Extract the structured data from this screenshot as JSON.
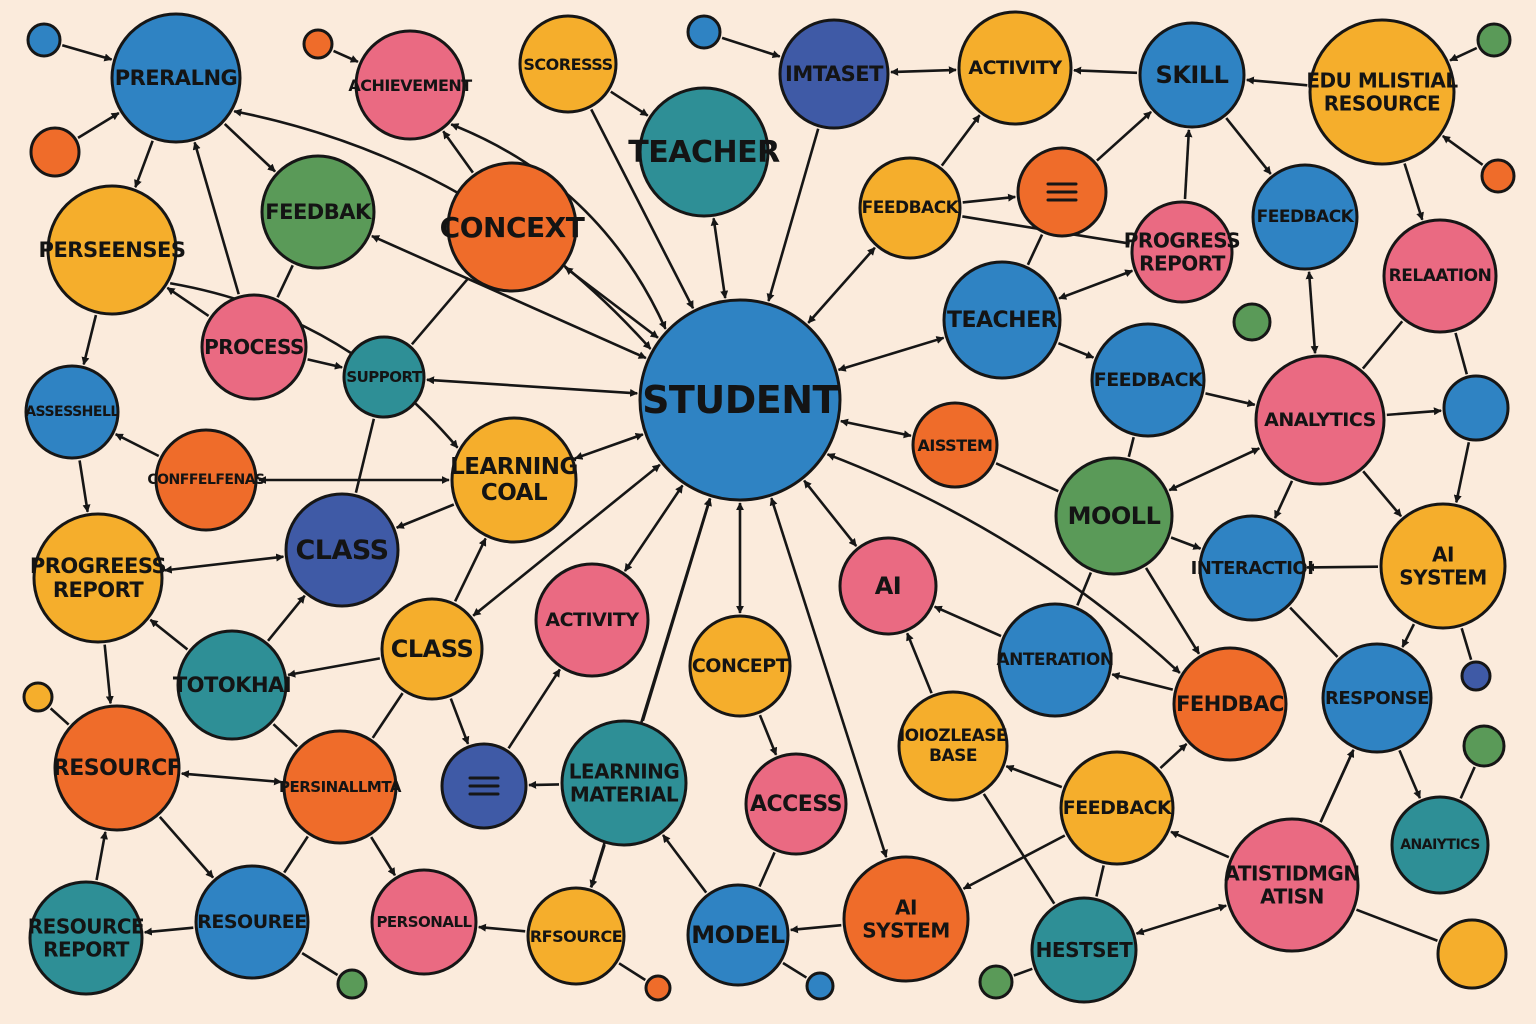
{
  "colors": {
    "background": "#fbebdc",
    "blue": "#2f83c3",
    "teal": "#2e8f96",
    "green": "#5a9a58",
    "orange": "#ef6c2a",
    "yellow": "#f5ae2c",
    "pink": "#ea6a82",
    "indigo": "#3f5aa6",
    "outline": "#161616"
  },
  "nodes": [
    {
      "id": "student",
      "label": "STUDENT",
      "color": "blue"
    },
    {
      "id": "prerang",
      "label": "PRERALNG",
      "color": "blue"
    },
    {
      "id": "achievement",
      "label": "ACHIEVEMENT",
      "color": "pink"
    },
    {
      "id": "scoresss",
      "label": "SCORESSS",
      "color": "yellow"
    },
    {
      "id": "teacher_top",
      "label": "TEACHER",
      "color": "teal"
    },
    {
      "id": "imtaset",
      "label": "IMTASET",
      "color": "indigo"
    },
    {
      "id": "activity_top",
      "label": "ACTIVITY",
      "color": "yellow"
    },
    {
      "id": "skill",
      "label": "SKILL",
      "color": "blue"
    },
    {
      "id": "edu_resource",
      "label": "EDU MLISTIAL RESOURCE",
      "color": "yellow"
    },
    {
      "id": "feedbak",
      "label": "FEEDBAK",
      "color": "green"
    },
    {
      "id": "concext",
      "label": "CONCEXT",
      "color": "orange"
    },
    {
      "id": "perseenses",
      "label": "PERSEENSES",
      "color": "yellow"
    },
    {
      "id": "feedback_y1",
      "label": "FEEDBACK",
      "color": "yellow"
    },
    {
      "id": "menu_orange",
      "label": "",
      "color": "orange",
      "icon": "menu-icon"
    },
    {
      "id": "progress_report_pink",
      "label": "PROGRESS REPORT",
      "color": "pink"
    },
    {
      "id": "feedback_b1",
      "label": "FEEDBACK",
      "color": "blue"
    },
    {
      "id": "relation",
      "label": "RELAATION",
      "color": "pink"
    },
    {
      "id": "process",
      "label": "PROCESS",
      "color": "pink"
    },
    {
      "id": "support",
      "label": "SUPPORT",
      "color": "teal"
    },
    {
      "id": "teacher_mid",
      "label": "TEACHER",
      "color": "blue"
    },
    {
      "id": "assesshell",
      "label": "ASSESSHELL",
      "color": "blue"
    },
    {
      "id": "confelfenas",
      "label": "CONFFELFENAS",
      "color": "orange"
    },
    {
      "id": "learning_goal",
      "label": "LEARNING COAL",
      "color": "yellow"
    },
    {
      "id": "aisstem",
      "label": "AISSTEM",
      "color": "orange"
    },
    {
      "id": "feedback_b2",
      "label": "FEEDBACK",
      "color": "blue"
    },
    {
      "id": "analytics_pink",
      "label": "ANALYTICS",
      "color": "pink"
    },
    {
      "id": "blue_right",
      "label": "",
      "color": "blue"
    },
    {
      "id": "progress_report_y",
      "label": "PROGREESS REPORT",
      "color": "yellow"
    },
    {
      "id": "class_indigo",
      "label": "CLASS",
      "color": "indigo"
    },
    {
      "id": "mooll",
      "label": "MOOLL",
      "color": "green"
    },
    {
      "id": "interaction",
      "label": "INTERACTIOI",
      "color": "blue"
    },
    {
      "id": "ai_system_y",
      "label": "AI SYSTEM",
      "color": "yellow"
    },
    {
      "id": "totokhai",
      "label": "TOTOKHAI",
      "color": "teal"
    },
    {
      "id": "class_y",
      "label": "CLASS",
      "color": "yellow"
    },
    {
      "id": "activity_pink",
      "label": "ACTIVITY",
      "color": "pink"
    },
    {
      "id": "concept",
      "label": "CONCEPT",
      "color": "yellow"
    },
    {
      "id": "ai_pink",
      "label": "AI",
      "color": "pink"
    },
    {
      "id": "anteration",
      "label": "ANTERATION",
      "color": "blue"
    },
    {
      "id": "fehdbac",
      "label": "FEHDBAC",
      "color": "orange"
    },
    {
      "id": "response",
      "label": "RESPONSE",
      "color": "blue"
    },
    {
      "id": "resourcf",
      "label": "RESOURCF",
      "color": "orange"
    },
    {
      "id": "persinallmta",
      "label": "PERSINALLMTA",
      "color": "orange"
    },
    {
      "id": "menu_indigo",
      "label": "",
      "color": "indigo",
      "icon": "menu-icon"
    },
    {
      "id": "learning_material",
      "label": "LEARNING MATERIAL",
      "color": "teal"
    },
    {
      "id": "access",
      "label": "ACCESS",
      "color": "pink"
    },
    {
      "id": "knowledge_base",
      "label": "IOIOZLEASE BASE",
      "color": "yellow"
    },
    {
      "id": "feedback_y2",
      "label": "FEEDBACK",
      "color": "yellow"
    },
    {
      "id": "analytics_teal",
      "label": "ANAIYTICS",
      "color": "teal"
    },
    {
      "id": "resource_report",
      "label": "RESOURCE REPORT",
      "color": "teal"
    },
    {
      "id": "resouree",
      "label": "RESOUREE",
      "color": "blue"
    },
    {
      "id": "personall",
      "label": "PERSONALL",
      "color": "pink"
    },
    {
      "id": "rfsource",
      "label": "RFSOURCE",
      "color": "yellow"
    },
    {
      "id": "model",
      "label": "MODEL",
      "color": "blue"
    },
    {
      "id": "ai_system_o",
      "label": "AI SYSTEM",
      "color": "orange"
    },
    {
      "id": "hestset",
      "label": "HESTSET",
      "color": "teal"
    },
    {
      "id": "atistidmgn",
      "label": "ATISTIDMGN ATISN",
      "color": "pink"
    },
    {
      "id": "yellow_br",
      "label": "",
      "color": "yellow"
    },
    {
      "id": "s1",
      "label": "",
      "color": "blue"
    },
    {
      "id": "s2",
      "label": "",
      "color": "orange"
    },
    {
      "id": "s3",
      "label": "",
      "color": "orange"
    },
    {
      "id": "s4",
      "label": "",
      "color": "blue"
    },
    {
      "id": "s5",
      "label": "",
      "color": "green"
    },
    {
      "id": "s6",
      "label": "",
      "color": "orange"
    },
    {
      "id": "s7",
      "label": "",
      "color": "green"
    },
    {
      "id": "s8",
      "label": "",
      "color": "indigo"
    },
    {
      "id": "s9",
      "label": "",
      "color": "green"
    },
    {
      "id": "s10",
      "label": "",
      "color": "yellow"
    },
    {
      "id": "s11",
      "label": "",
      "color": "green"
    },
    {
      "id": "s12",
      "label": "",
      "color": "orange"
    },
    {
      "id": "s13",
      "label": "",
      "color": "blue"
    },
    {
      "id": "s14",
      "label": "",
      "color": "green"
    }
  ],
  "edges": [
    {
      "from": "prerang",
      "to": "student",
      "dir": "both"
    },
    {
      "from": "achievement",
      "to": "student",
      "dir": "both"
    },
    {
      "from": "scoresss",
      "to": "student",
      "dir": "to"
    },
    {
      "from": "teacher_top",
      "to": "student",
      "dir": "both"
    },
    {
      "from": "imtaset",
      "to": "student",
      "dir": "to"
    },
    {
      "from": "feedback_y1",
      "to": "student",
      "dir": "both"
    },
    {
      "from": "teacher_mid",
      "to": "student",
      "dir": "both"
    },
    {
      "from": "aisstem",
      "to": "student",
      "dir": "both"
    },
    {
      "from": "concext",
      "to": "student",
      "dir": "both"
    },
    {
      "from": "feedbak",
      "to": "student",
      "dir": "both"
    },
    {
      "from": "support",
      "to": "student",
      "dir": "both"
    },
    {
      "from": "learning_goal",
      "to": "student",
      "dir": "both"
    },
    {
      "from": "class_y",
      "to": "student",
      "dir": "both"
    },
    {
      "from": "activity_pink",
      "to": "student",
      "dir": "both"
    },
    {
      "from": "concept",
      "to": "student",
      "dir": "both"
    },
    {
      "from": "learning_material",
      "to": "student",
      "dir": "to"
    },
    {
      "from": "rfsource",
      "to": "student",
      "dir": "to"
    },
    {
      "from": "ai_system_o",
      "to": "student",
      "dir": "both"
    },
    {
      "from": "ai_pink",
      "to": "student",
      "dir": "both"
    },
    {
      "from": "fehdbac",
      "to": "student",
      "dir": "both"
    },
    {
      "from": "s1",
      "to": "prerang",
      "dir": "to"
    },
    {
      "from": "s2",
      "to": "prerang",
      "dir": "to"
    },
    {
      "from": "prerang",
      "to": "feedbak",
      "dir": "to"
    },
    {
      "from": "prerang",
      "to": "perseenses",
      "dir": "to"
    },
    {
      "from": "process",
      "to": "prerang",
      "dir": "to"
    },
    {
      "from": "s3",
      "to": "achievement",
      "dir": "to"
    },
    {
      "from": "scoresss",
      "to": "teacher_top",
      "dir": "to"
    },
    {
      "from": "s4",
      "to": "imtaset",
      "dir": "to"
    },
    {
      "from": "imtaset",
      "to": "activity_top",
      "dir": "both"
    },
    {
      "from": "skill",
      "to": "activity_top",
      "dir": "to"
    },
    {
      "from": "edu_resource",
      "to": "skill",
      "dir": "to"
    },
    {
      "from": "s5",
      "to": "edu_resource",
      "dir": "to"
    },
    {
      "from": "s6",
      "to": "edu_resource",
      "dir": "to"
    },
    {
      "from": "edu_resource",
      "to": "relation",
      "dir": "to"
    },
    {
      "from": "feedback_y1",
      "to": "activity_top",
      "dir": "to"
    },
    {
      "from": "feedback_y1",
      "to": "menu_orange",
      "dir": "to"
    },
    {
      "from": "menu_orange",
      "to": "skill",
      "dir": "to"
    },
    {
      "from": "progress_report_pink",
      "to": "skill",
      "dir": "to"
    },
    {
      "from": "skill",
      "to": "feedback_b1",
      "dir": "to"
    },
    {
      "from": "feedback_b1",
      "to": "analytics_pink",
      "dir": "both"
    },
    {
      "from": "teacher_mid",
      "to": "progress_report_pink",
      "dir": "both"
    },
    {
      "from": "teacher_mid",
      "to": "menu_orange",
      "dir": "none"
    },
    {
      "from": "teacher_mid",
      "to": "feedback_b2",
      "dir": "to"
    },
    {
      "from": "feedback_b2",
      "to": "analytics_pink",
      "dir": "to"
    },
    {
      "from": "relation",
      "to": "analytics_pink",
      "dir": "none"
    },
    {
      "from": "relation",
      "to": "blue_right",
      "dir": "none"
    },
    {
      "from": "analytics_pink",
      "to": "blue_right",
      "dir": "to"
    },
    {
      "from": "blue_right",
      "to": "ai_system_y",
      "dir": "to"
    },
    {
      "from": "analytics_pink",
      "to": "mooll",
      "dir": "both"
    },
    {
      "from": "analytics_pink",
      "to": "interaction",
      "dir": "to"
    },
    {
      "from": "analytics_pink",
      "to": "ai_system_y",
      "dir": "to"
    },
    {
      "from": "ai_system_y",
      "to": "interaction",
      "dir": "to"
    },
    {
      "from": "ai_system_y",
      "to": "response",
      "dir": "to"
    },
    {
      "from": "ai_system_y",
      "to": "s8",
      "dir": "none"
    },
    {
      "from": "aisstem",
      "to": "mooll",
      "dir": "none"
    },
    {
      "from": "feedback_b2",
      "to": "mooll",
      "dir": "none"
    },
    {
      "from": "mooll",
      "to": "interaction",
      "dir": "to"
    },
    {
      "from": "mooll",
      "to": "fehdbac",
      "dir": "to"
    },
    {
      "from": "mooll",
      "to": "anteration",
      "dir": "none"
    },
    {
      "from": "anteration",
      "to": "ai_pink",
      "dir": "to"
    },
    {
      "from": "fehdbac",
      "to": "anteration",
      "dir": "to"
    },
    {
      "from": "interaction",
      "to": "response",
      "dir": "none"
    },
    {
      "from": "response",
      "to": "atistidmgn",
      "dir": "none"
    },
    {
      "from": "response",
      "to": "analytics_teal",
      "dir": "to"
    },
    {
      "from": "s9",
      "to": "analytics_teal",
      "dir": "none"
    },
    {
      "from": "atistidmgn",
      "to": "response",
      "dir": "to"
    },
    {
      "from": "atistidmgn",
      "to": "feedback_y2",
      "dir": "to"
    },
    {
      "from": "atistidmgn",
      "to": "hestset",
      "dir": "both"
    },
    {
      "from": "yellow_br",
      "to": "atistidmgn",
      "dir": "none"
    },
    {
      "from": "feedback_y2",
      "to": "fehdbac",
      "dir": "to"
    },
    {
      "from": "feedback_y2",
      "to": "knowledge_base",
      "dir": "to"
    },
    {
      "from": "feedback_y2",
      "to": "ai_system_o",
      "dir": "to"
    },
    {
      "from": "feedback_y2",
      "to": "hestset",
      "dir": "none"
    },
    {
      "from": "s11",
      "to": "hestset",
      "dir": "none"
    },
    {
      "from": "knowledge_base",
      "to": "ai_pink",
      "dir": "to"
    },
    {
      "from": "knowledge_base",
      "to": "hestset",
      "dir": "none"
    },
    {
      "from": "ai_system_o",
      "to": "model",
      "dir": "to"
    },
    {
      "from": "model",
      "to": "learning_material",
      "dir": "to"
    },
    {
      "from": "model",
      "to": "s13",
      "dir": "none"
    },
    {
      "from": "learning_material",
      "to": "rfsource",
      "dir": "to"
    },
    {
      "from": "learning_material",
      "to": "menu_indigo",
      "dir": "to"
    },
    {
      "from": "concept",
      "to": "access",
      "dir": "to"
    },
    {
      "from": "access",
      "to": "model",
      "dir": "none"
    },
    {
      "from": "rfsource",
      "to": "personall",
      "dir": "to"
    },
    {
      "from": "rfsource",
      "to": "s12",
      "dir": "none"
    },
    {
      "from": "menu_indigo",
      "to": "activity_pink",
      "dir": "to"
    },
    {
      "from": "class_y",
      "to": "menu_indigo",
      "dir": "to"
    },
    {
      "from": "class_y",
      "to": "totokhai",
      "dir": "to"
    },
    {
      "from": "class_y",
      "to": "learning_goal",
      "dir": "to"
    },
    {
      "from": "class_y",
      "to": "persinallmta",
      "dir": "none"
    },
    {
      "from": "persinallmta",
      "to": "personall",
      "dir": "to"
    },
    {
      "from": "persinallmta",
      "to": "resourcf",
      "dir": "both"
    },
    {
      "from": "persinallmta",
      "to": "resouree",
      "dir": "none"
    },
    {
      "from": "totokhai",
      "to": "class_indigo",
      "dir": "to"
    },
    {
      "from": "totokhai",
      "to": "persinallmta",
      "dir": "none"
    },
    {
      "from": "totokhai",
      "to": "progress_report_y",
      "dir": "to"
    },
    {
      "from": "learning_goal",
      "to": "class_indigo",
      "dir": "to"
    },
    {
      "from": "class_indigo",
      "to": "progress_report_y",
      "dir": "both"
    },
    {
      "from": "class_indigo",
      "to": "support",
      "dir": "none"
    },
    {
      "from": "support",
      "to": "concext",
      "dir": "none"
    },
    {
      "from": "process",
      "to": "support",
      "dir": "to"
    },
    {
      "from": "process",
      "to": "perseenses",
      "dir": "to"
    },
    {
      "from": "process",
      "to": "feedbak",
      "dir": "none"
    },
    {
      "from": "perseenses",
      "to": "assesshell",
      "dir": "to"
    },
    {
      "from": "perseenses",
      "to": "learning_goal",
      "dir": "to"
    },
    {
      "from": "assesshell",
      "to": "progress_report_y",
      "dir": "to"
    },
    {
      "from": "confelfenas",
      "to": "assesshell",
      "dir": "to"
    },
    {
      "from": "confelfenas",
      "to": "learning_goal",
      "dir": "both"
    },
    {
      "from": "progress_report_y",
      "to": "resourcf",
      "dir": "to"
    },
    {
      "from": "s10",
      "to": "resourcf",
      "dir": "none"
    },
    {
      "from": "resource_report",
      "to": "resourcf",
      "dir": "to"
    },
    {
      "from": "resourcf",
      "to": "resouree",
      "dir": "to"
    },
    {
      "from": "resouree",
      "to": "resource_report",
      "dir": "to"
    },
    {
      "from": "resouree",
      "to": "s7",
      "dir": "none"
    },
    {
      "from": "concext",
      "to": "achievement",
      "dir": "to"
    },
    {
      "from": "feedback_y1",
      "to": "progress_report_pink",
      "dir": "none"
    }
  ]
}
